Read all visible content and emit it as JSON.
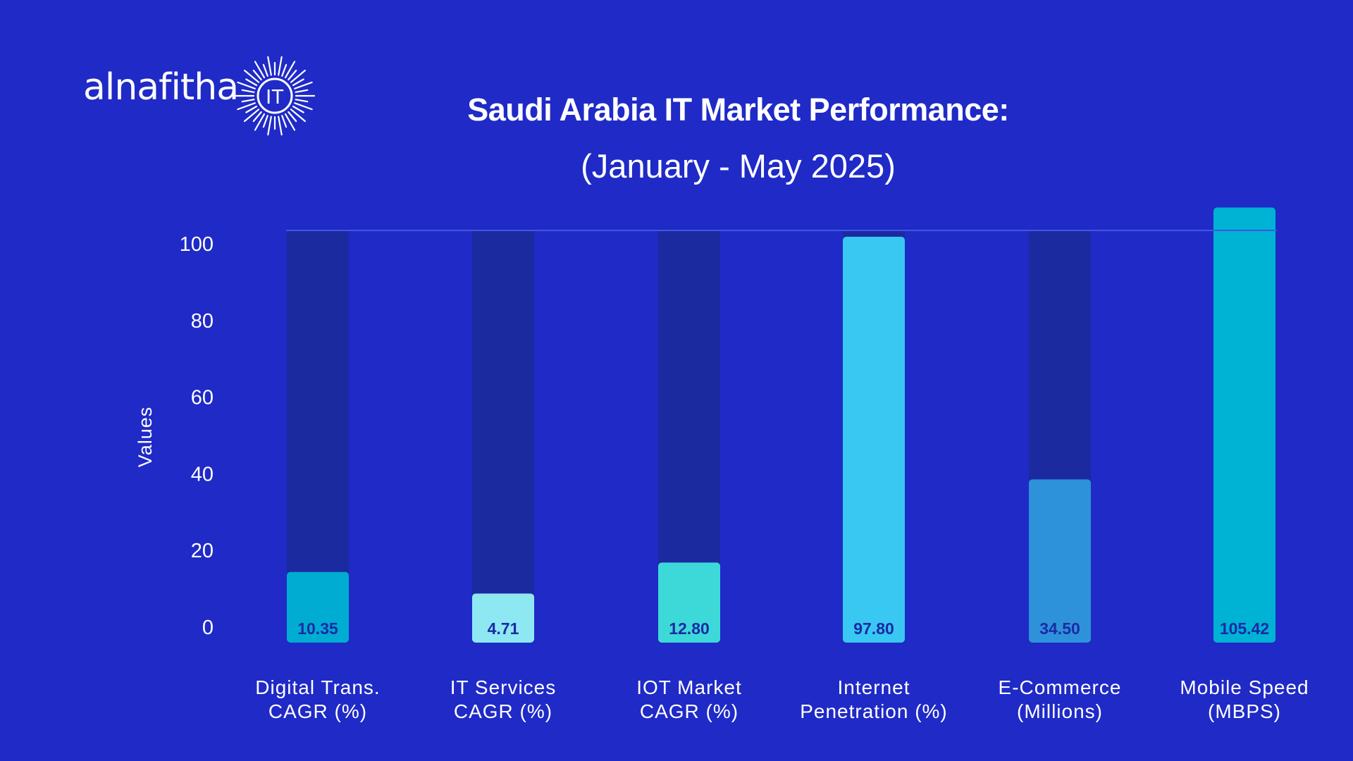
{
  "brand": {
    "wordmark": "alnafitha",
    "badge": "IT"
  },
  "header": {
    "title": "Saudi Arabia IT Market Performance:",
    "subtitle": "(January - May 2025)"
  },
  "colors": {
    "background": "#1f2ac7",
    "track": "#1c2aa0",
    "label_text": "#1b2aa6",
    "reference_line": "#3e57e0"
  },
  "chart_data": {
    "type": "bar",
    "ylabel": "Values",
    "ylim": [
      0,
      105.42
    ],
    "yticks": [
      0,
      20,
      40,
      60,
      80,
      100
    ],
    "grid": false,
    "categories": [
      [
        "Digital Trans.",
        "CAGR (%)"
      ],
      [
        "IT Services",
        "CAGR (%)"
      ],
      [
        "IOT Market",
        "CAGR (%)"
      ],
      [
        "Internet",
        "Penetration (%)"
      ],
      [
        "E-Commerce",
        "(Millions)"
      ],
      [
        "Mobile Speed",
        "(MBPS)"
      ]
    ],
    "values": [
      10.35,
      4.71,
      12.8,
      97.8,
      34.5,
      105.42
    ],
    "value_labels": [
      "10.35",
      "4.71",
      "12.80",
      "97.80",
      "34.50",
      "105.42"
    ],
    "bar_colors": [
      "#00acd1",
      "#8ee8f2",
      "#3dd9d8",
      "#38c8f2",
      "#2e92da",
      "#00b2d4"
    ]
  }
}
